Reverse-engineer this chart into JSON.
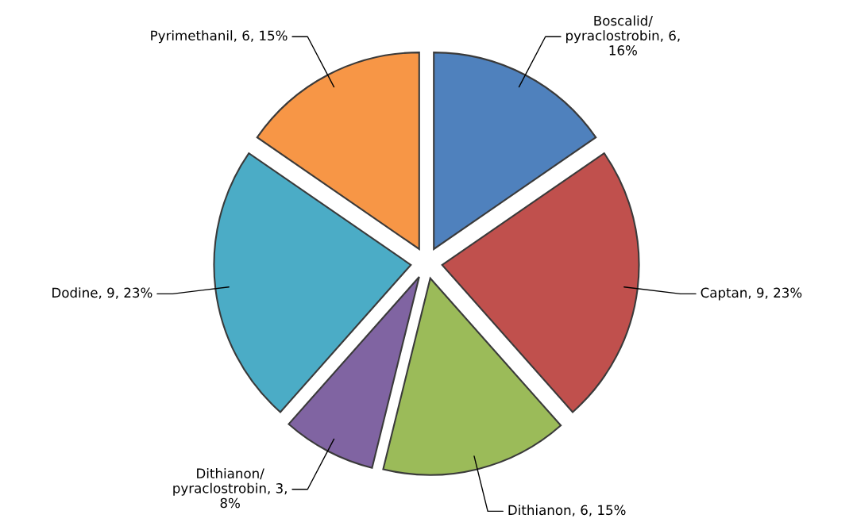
{
  "chart_data": {
    "type": "pie",
    "categories": [
      "Boscalid/pyraclostrobin",
      "Captan",
      "Dithianon",
      "Dithianon/pyraclostrobin",
      "Dodine",
      "Pyrimethanil"
    ],
    "values": [
      6,
      9,
      6,
      3,
      9,
      6
    ],
    "value_labels": [
      "6, 16%",
      "9, 23%",
      "6, 15%",
      "3, 8%",
      "9, 23%",
      "6, 15%"
    ],
    "colors": [
      "#4f81bd",
      "#c0504d",
      "#9bbb59",
      "#8064a2",
      "#4bacc6",
      "#f79646"
    ],
    "legend": false
  }
}
